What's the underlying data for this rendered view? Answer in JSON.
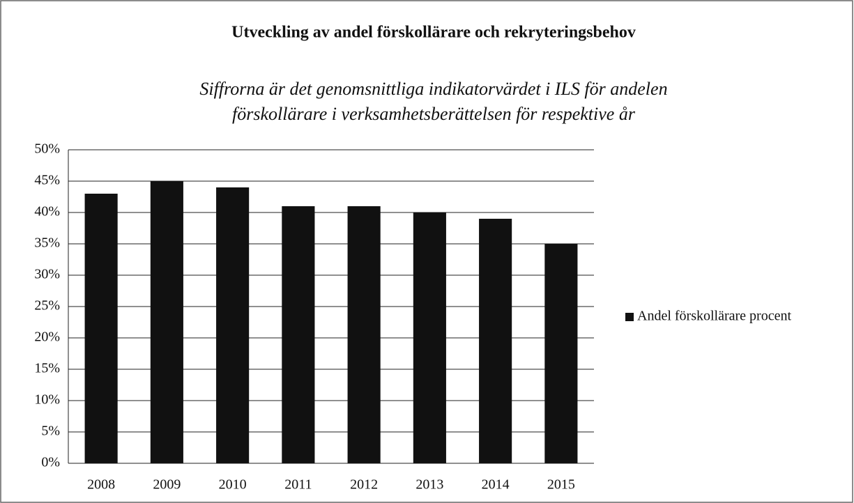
{
  "chart_data": {
    "type": "bar",
    "title": "Utveckling av andel förskollärare och rekryteringsbehov",
    "subtitle": [
      "Siffrorna är det genomsnittliga indikatorvärdet i ILS för andelen",
      "förskollärare i verksamhetsberättelsen för respektive år"
    ],
    "categories": [
      "2008",
      "2009",
      "2010",
      "2011",
      "2012",
      "2013",
      "2014",
      "2015"
    ],
    "series": [
      {
        "name": "Andel förskollärare procent",
        "color": "#111111",
        "values": [
          43,
          45,
          44,
          41,
          41,
          40,
          39,
          35
        ]
      }
    ],
    "ylim": [
      0,
      50
    ],
    "yticks": [
      {
        "value": 0,
        "label": "0%"
      },
      {
        "value": 5,
        "label": "5%"
      },
      {
        "value": 10,
        "label": "10%"
      },
      {
        "value": 15,
        "label": "15%"
      },
      {
        "value": 20,
        "label": "20%"
      },
      {
        "value": 25,
        "label": "25%"
      },
      {
        "value": 30,
        "label": "30%"
      },
      {
        "value": 35,
        "label": "35%"
      },
      {
        "value": 40,
        "label": "40%"
      },
      {
        "value": 45,
        "label": "45%"
      },
      {
        "value": 50,
        "label": "50%"
      }
    ],
    "grid": true,
    "legend": "right"
  }
}
